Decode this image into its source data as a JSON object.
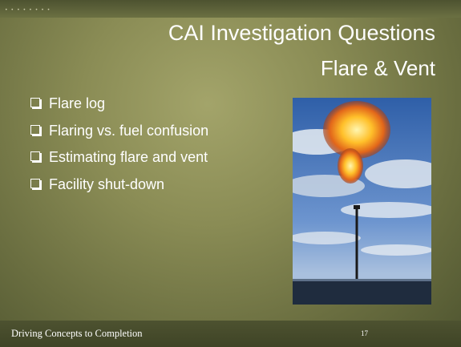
{
  "slide": {
    "title": "CAI Investigation Questions",
    "subtitle": "Flare & Vent",
    "bullets": [
      "Flare log",
      "Flaring vs. fuel confusion",
      "Estimating flare and vent",
      "Facility shut-down"
    ],
    "footer": "Driving Concepts to Completion",
    "page_number": "17"
  }
}
